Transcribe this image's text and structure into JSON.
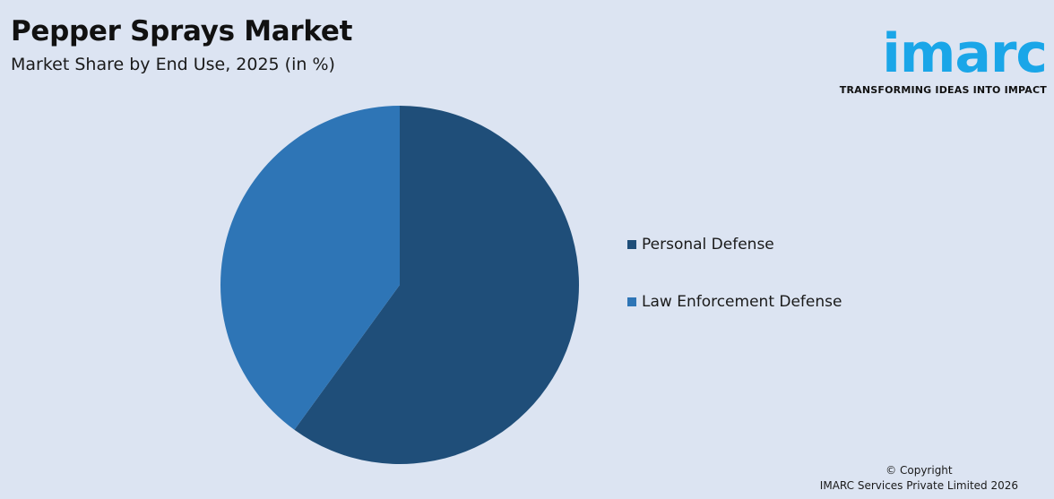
{
  "header": {
    "title": "Pepper Sprays Market",
    "subtitle": "Market Share by End Use, 2025 (in %)"
  },
  "logo": {
    "wordmark": "imarc",
    "tagline": "TRANSFORMING IDEAS INTO IMPACT",
    "color": "#1aa6e8"
  },
  "chart_data": {
    "type": "pie",
    "title": "Pepper Sprays Market",
    "subtitle": "Market Share by End Use, 2025 (in %)",
    "categories": [
      "Personal Defense",
      "Law Enforcement Defense"
    ],
    "values": [
      60,
      40
    ],
    "colors": [
      "#1f4e79",
      "#2e75b6"
    ],
    "start_angle_deg": 0,
    "direction": "clockwise",
    "legend": "right",
    "data_labels": false
  },
  "footer": {
    "copyright_line1": "© Copyright",
    "copyright_line2": "IMARC Services Private Limited 2026"
  }
}
